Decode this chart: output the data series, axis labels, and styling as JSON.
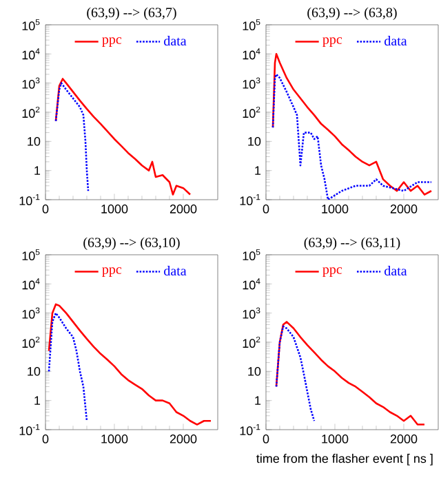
{
  "chart_data": [
    {
      "type": "line",
      "title": "(63,9) --> (63,7)",
      "log": "y",
      "legend": "top",
      "xlim": [
        0,
        2500
      ],
      "ylim": [
        0.1,
        100000
      ],
      "xticks": [
        0,
        1000,
        2000
      ],
      "yticks": [
        {
          "value": 0.1,
          "label": "10$^{-1}$"
        },
        1,
        10,
        {
          "value": 100,
          "label": "10$^{2}$"
        },
        {
          "value": 1000,
          "label": "10$^{3}$"
        },
        {
          "value": 10000,
          "label": "10$^{4}$"
        },
        {
          "value": 100000,
          "label": "10$^{5}$"
        }
      ],
      "series": [
        {
          "name": "ppc",
          "color": "#ff0000",
          "line_style": "solid",
          "x": [
            150,
            200,
            250,
            300,
            400,
            500,
            600,
            700,
            800,
            900,
            1000,
            1100,
            1200,
            1300,
            1400,
            1500,
            1550,
            1600,
            1700,
            1800,
            1850,
            1900,
            2000,
            2100
          ],
          "values": [
            50,
            800,
            1400,
            1000,
            500,
            250,
            130,
            70,
            40,
            22,
            12,
            7,
            4,
            2.5,
            1.5,
            1,
            2,
            0.6,
            0.7,
            0.4,
            0.15,
            0.3,
            0.25,
            0.15
          ]
        },
        {
          "name": "data",
          "color": "#0000ff",
          "line_style": "dotted",
          "x": [
            150,
            200,
            230,
            300,
            400,
            500,
            550,
            580,
            600,
            620
          ],
          "values": [
            50,
            600,
            1000,
            600,
            300,
            150,
            80,
            10,
            1,
            0.2
          ]
        }
      ]
    },
    {
      "type": "line",
      "title": "(63,9) --> (63,8)",
      "log": "y",
      "legend": "top",
      "xlim": [
        0,
        2500
      ],
      "ylim": [
        0.1,
        100000
      ],
      "xticks": [
        0,
        1000,
        2000
      ],
      "yticks": [
        {
          "value": 0.1,
          "label": "10$^{-1}$"
        },
        1,
        10,
        {
          "value": 100,
          "label": "10$^{2}$"
        },
        {
          "value": 1000,
          "label": "10$^{3}$"
        },
        {
          "value": 10000,
          "label": "10$^{4}$"
        },
        {
          "value": 100000,
          "label": "10$^{5}$"
        }
      ],
      "series": [
        {
          "name": "ppc",
          "color": "#ff0000",
          "line_style": "solid",
          "x": [
            100,
            130,
            150,
            200,
            300,
            400,
            500,
            600,
            700,
            800,
            900,
            1000,
            1100,
            1200,
            1300,
            1400,
            1500,
            1600,
            1700,
            1800,
            1900,
            2000,
            2100,
            2200,
            2300,
            2400
          ],
          "values": [
            30,
            5000,
            10000,
            5000,
            1500,
            600,
            300,
            150,
            80,
            40,
            25,
            15,
            8,
            5,
            3,
            2,
            1.5,
            2,
            0.5,
            0.3,
            0.2,
            0.4,
            0.2,
            0.3,
            0.15,
            0.2
          ]
        },
        {
          "name": "data",
          "color": "#0000ff",
          "line_style": "dotted",
          "x": [
            100,
            130,
            150,
            200,
            300,
            400,
            450,
            500,
            550,
            650,
            700,
            750,
            800,
            850,
            900,
            1100,
            1300,
            1500,
            1600,
            1700,
            2000,
            2200,
            2400
          ],
          "values": [
            30,
            1500,
            2000,
            1500,
            500,
            150,
            80,
            1.5,
            20,
            20,
            12,
            15,
            1.5,
            0.5,
            0.1,
            0.2,
            0.3,
            0.3,
            0.5,
            0.3,
            0.2,
            0.4,
            0.4
          ]
        }
      ]
    },
    {
      "type": "line",
      "title": "(63,9) --> (63,10)",
      "log": "y",
      "legend": "top",
      "xlim": [
        0,
        2500
      ],
      "ylim": [
        0.1,
        100000
      ],
      "xticks": [
        0,
        1000,
        2000
      ],
      "yticks": [
        {
          "value": 0.1,
          "label": "10$^{-1}$"
        },
        1,
        10,
        {
          "value": 100,
          "label": "10$^{2}$"
        },
        {
          "value": 1000,
          "label": "10$^{3}$"
        },
        {
          "value": 10000,
          "label": "10$^{4}$"
        },
        {
          "value": 100000,
          "label": "10$^{5}$"
        }
      ],
      "series": [
        {
          "name": "ppc",
          "color": "#ff0000",
          "line_style": "solid",
          "x": [
            50,
            100,
            150,
            200,
            300,
            400,
            500,
            600,
            700,
            800,
            900,
            1000,
            1100,
            1200,
            1300,
            1400,
            1500,
            1600,
            1700,
            1800,
            1900,
            2000,
            2100,
            2200,
            2300,
            2400
          ],
          "values": [
            50,
            1000,
            2000,
            1800,
            1000,
            500,
            250,
            130,
            70,
            40,
            25,
            15,
            8,
            5,
            3.5,
            2.5,
            1.5,
            1,
            1,
            0.8,
            0.4,
            0.3,
            0.2,
            0.15,
            0.2,
            0.2
          ]
        },
        {
          "name": "data",
          "color": "#0000ff",
          "line_style": "dotted",
          "x": [
            50,
            100,
            150,
            200,
            300,
            400,
            450,
            500,
            550,
            600
          ],
          "values": [
            10,
            500,
            1000,
            700,
            300,
            150,
            50,
            10,
            3,
            0.2
          ]
        }
      ]
    },
    {
      "type": "line",
      "title": "(63,9) --> (63,11)",
      "xlabel": "time from the flasher event [ ns ]",
      "log": "y",
      "legend": "top",
      "xlim": [
        0,
        2500
      ],
      "ylim": [
        0.1,
        100000
      ],
      "xticks": [
        0,
        1000,
        2000
      ],
      "yticks": [
        {
          "value": 0.1,
          "label": "10$^{-1}$"
        },
        1,
        10,
        {
          "value": 100,
          "label": "10$^{2}$"
        },
        {
          "value": 1000,
          "label": "10$^{3}$"
        },
        {
          "value": 10000,
          "label": "10$^{4}$"
        },
        {
          "value": 100000,
          "label": "10$^{5}$"
        }
      ],
      "series": [
        {
          "name": "ppc",
          "color": "#ff0000",
          "line_style": "solid",
          "x": [
            150,
            200,
            250,
            300,
            400,
            500,
            600,
            700,
            800,
            900,
            1000,
            1100,
            1200,
            1300,
            1400,
            1500,
            1600,
            1700,
            1800,
            1900,
            2000,
            2100,
            2200,
            2300
          ],
          "values": [
            3,
            100,
            400,
            500,
            300,
            150,
            80,
            45,
            25,
            15,
            10,
            6,
            4,
            3,
            2,
            1.3,
            0.8,
            0.6,
            0.4,
            0.3,
            0.2,
            0.3,
            0.15,
            0.15
          ]
        },
        {
          "name": "data",
          "color": "#0000ff",
          "line_style": "dotted",
          "x": [
            150,
            200,
            250,
            300,
            400,
            500,
            550,
            600,
            650,
            700
          ],
          "values": [
            3,
            100,
            350,
            300,
            150,
            30,
            8,
            2,
            0.5,
            0.2
          ]
        }
      ]
    }
  ]
}
